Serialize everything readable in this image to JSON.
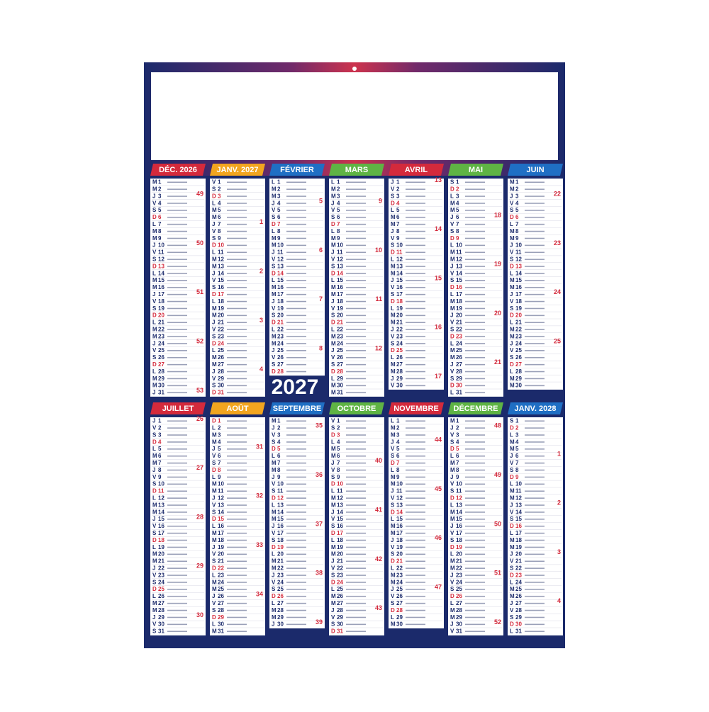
{
  "year": "2027",
  "months": [
    {
      "name": "DÉC. 2026",
      "color": "#d42a3c",
      "letters": [
        "M",
        "M",
        "J",
        "V",
        "S",
        "D",
        "L",
        "M",
        "M",
        "J",
        "V",
        "S",
        "D",
        "L",
        "M",
        "M",
        "J",
        "V",
        "S",
        "D",
        "L",
        "M",
        "M",
        "J",
        "V",
        "S",
        "D",
        "L",
        "M",
        "M",
        "J"
      ],
      "numbers": [
        1,
        2,
        3,
        4,
        5,
        6,
        7,
        8,
        9,
        10,
        11,
        12,
        13,
        14,
        15,
        16,
        17,
        18,
        19,
        20,
        21,
        22,
        23,
        24,
        25,
        26,
        27,
        28,
        29,
        30,
        31
      ],
      "weeks": [
        49,
        50,
        51,
        52,
        53
      ]
    },
    {
      "name": "JANV. 2027",
      "color": "#f2a51f",
      "letters": [
        "V",
        "S",
        "D",
        "L",
        "M",
        "M",
        "J",
        "V",
        "S",
        "D",
        "L",
        "M",
        "M",
        "J",
        "V",
        "S",
        "D",
        "L",
        "M",
        "M",
        "J",
        "V",
        "S",
        "D",
        "L",
        "M",
        "M",
        "J",
        "V",
        "S",
        "D"
      ],
      "numbers": [
        1,
        2,
        3,
        4,
        5,
        6,
        7,
        8,
        9,
        10,
        11,
        12,
        13,
        14,
        15,
        16,
        17,
        18,
        19,
        20,
        21,
        22,
        23,
        24,
        25,
        26,
        27,
        28,
        29,
        30,
        31
      ],
      "weeks": [
        1,
        2,
        3,
        4
      ]
    },
    {
      "name": "FÉVRIER",
      "color": "#1f6fc4",
      "letters": [
        "L",
        "M",
        "M",
        "J",
        "V",
        "S",
        "D",
        "L",
        "M",
        "M",
        "J",
        "V",
        "S",
        "D",
        "L",
        "M",
        "M",
        "J",
        "V",
        "S",
        "D",
        "L",
        "M",
        "M",
        "J",
        "V",
        "S",
        "D"
      ],
      "numbers": [
        1,
        2,
        3,
        4,
        5,
        6,
        7,
        8,
        9,
        10,
        11,
        12,
        13,
        14,
        15,
        16,
        17,
        18,
        19,
        20,
        21,
        22,
        23,
        24,
        25,
        26,
        27,
        28
      ],
      "weeks": [
        5,
        6,
        7,
        8
      ]
    },
    {
      "name": "MARS",
      "color": "#5fb444",
      "letters": [
        "L",
        "M",
        "M",
        "J",
        "V",
        "S",
        "D",
        "L",
        "M",
        "M",
        "J",
        "V",
        "S",
        "D",
        "L",
        "M",
        "M",
        "J",
        "V",
        "S",
        "D",
        "L",
        "M",
        "M",
        "J",
        "V",
        "S",
        "D",
        "L",
        "M",
        "M"
      ],
      "numbers": [
        1,
        2,
        3,
        4,
        5,
        6,
        7,
        8,
        9,
        10,
        11,
        12,
        13,
        14,
        15,
        16,
        17,
        18,
        19,
        20,
        21,
        22,
        23,
        24,
        25,
        26,
        27,
        28,
        29,
        30,
        31
      ],
      "weeks": [
        9,
        10,
        11,
        12
      ]
    },
    {
      "name": "AVRIL",
      "color": "#d42a3c",
      "letters": [
        "J",
        "V",
        "S",
        "D",
        "L",
        "M",
        "M",
        "J",
        "V",
        "S",
        "D",
        "L",
        "M",
        "M",
        "J",
        "V",
        "S",
        "D",
        "L",
        "M",
        "M",
        "J",
        "V",
        "S",
        "D",
        "L",
        "M",
        "M",
        "J",
        "V"
      ],
      "numbers": [
        1,
        2,
        3,
        4,
        5,
        6,
        7,
        8,
        9,
        10,
        11,
        12,
        13,
        14,
        15,
        16,
        17,
        18,
        19,
        20,
        21,
        22,
        23,
        24,
        25,
        26,
        27,
        28,
        29,
        30
      ],
      "weeks": [
        13,
        14,
        15,
        16,
        17
      ]
    },
    {
      "name": "MAI",
      "color": "#5fb444",
      "letters": [
        "S",
        "D",
        "L",
        "M",
        "M",
        "J",
        "V",
        "S",
        "D",
        "L",
        "M",
        "M",
        "J",
        "V",
        "S",
        "D",
        "L",
        "M",
        "M",
        "J",
        "V",
        "S",
        "D",
        "L",
        "M",
        "M",
        "J",
        "V",
        "S",
        "D",
        "L"
      ],
      "numbers": [
        1,
        2,
        3,
        4,
        5,
        6,
        7,
        8,
        9,
        10,
        11,
        12,
        13,
        14,
        15,
        16,
        17,
        18,
        19,
        20,
        21,
        22,
        23,
        24,
        25,
        26,
        27,
        28,
        29,
        30,
        31
      ],
      "weeks": [
        18,
        19,
        20,
        21
      ]
    },
    {
      "name": "JUIN",
      "color": "#1f6fc4",
      "letters": [
        "M",
        "M",
        "J",
        "V",
        "S",
        "D",
        "L",
        "M",
        "M",
        "J",
        "V",
        "S",
        "D",
        "L",
        "M",
        "M",
        "J",
        "V",
        "S",
        "D",
        "L",
        "M",
        "M",
        "J",
        "V",
        "S",
        "D",
        "L",
        "M",
        "M"
      ],
      "numbers": [
        1,
        2,
        3,
        4,
        5,
        6,
        7,
        8,
        9,
        10,
        11,
        12,
        13,
        14,
        15,
        16,
        17,
        18,
        19,
        20,
        21,
        22,
        23,
        24,
        25,
        26,
        27,
        28,
        29,
        30
      ],
      "weeks": [
        22,
        23,
        24,
        25
      ]
    },
    {
      "name": "JUILLET",
      "color": "#d42a3c",
      "letters": [
        "J",
        "V",
        "S",
        "D",
        "L",
        "M",
        "M",
        "J",
        "V",
        "S",
        "D",
        "L",
        "M",
        "M",
        "J",
        "V",
        "S",
        "D",
        "L",
        "M",
        "M",
        "J",
        "V",
        "S",
        "D",
        "L",
        "M",
        "M",
        "J",
        "V",
        "S"
      ],
      "numbers": [
        1,
        2,
        3,
        4,
        5,
        6,
        7,
        8,
        9,
        10,
        11,
        12,
        13,
        14,
        15,
        16,
        17,
        18,
        19,
        20,
        21,
        22,
        23,
        24,
        25,
        26,
        27,
        28,
        29,
        30,
        31
      ],
      "weeks": [
        26,
        27,
        28,
        29,
        30
      ]
    },
    {
      "name": "AOÛT",
      "color": "#f2a51f",
      "letters": [
        "D",
        "L",
        "M",
        "M",
        "J",
        "V",
        "S",
        "D",
        "L",
        "M",
        "M",
        "J",
        "V",
        "S",
        "D",
        "L",
        "M",
        "M",
        "J",
        "V",
        "S",
        "D",
        "L",
        "M",
        "M",
        "J",
        "V",
        "S",
        "D",
        "L",
        "M"
      ],
      "numbers": [
        1,
        2,
        3,
        4,
        5,
        6,
        7,
        8,
        9,
        10,
        11,
        12,
        13,
        14,
        15,
        16,
        17,
        18,
        19,
        20,
        21,
        22,
        23,
        24,
        25,
        26,
        27,
        28,
        29,
        30,
        31
      ],
      "weeks": [
        31,
        32,
        33,
        34
      ]
    },
    {
      "name": "SEPTEMBRE",
      "color": "#1f6fc4",
      "letters": [
        "M",
        "J",
        "V",
        "S",
        "D",
        "L",
        "M",
        "M",
        "J",
        "V",
        "S",
        "D",
        "L",
        "M",
        "M",
        "J",
        "V",
        "S",
        "D",
        "L",
        "M",
        "M",
        "J",
        "V",
        "S",
        "D",
        "L",
        "M",
        "M",
        "J"
      ],
      "numbers": [
        1,
        2,
        3,
        4,
        5,
        6,
        7,
        8,
        9,
        10,
        11,
        12,
        13,
        14,
        15,
        16,
        17,
        18,
        19,
        20,
        21,
        22,
        23,
        24,
        25,
        26,
        27,
        28,
        29,
        30
      ],
      "weeks": [
        35,
        36,
        37,
        38,
        39
      ]
    },
    {
      "name": "OCTOBRE",
      "color": "#5fb444",
      "letters": [
        "V",
        "S",
        "D",
        "L",
        "M",
        "M",
        "J",
        "V",
        "S",
        "D",
        "L",
        "M",
        "M",
        "J",
        "V",
        "S",
        "D",
        "L",
        "M",
        "M",
        "J",
        "V",
        "S",
        "D",
        "L",
        "M",
        "M",
        "J",
        "V",
        "S",
        "D"
      ],
      "numbers": [
        1,
        2,
        3,
        4,
        5,
        6,
        7,
        8,
        9,
        10,
        11,
        12,
        13,
        14,
        15,
        16,
        17,
        18,
        19,
        20,
        21,
        22,
        23,
        24,
        25,
        26,
        27,
        28,
        29,
        30,
        31
      ],
      "weeks": [
        40,
        41,
        42,
        43
      ]
    },
    {
      "name": "NOVEMBRE",
      "color": "#d42a3c",
      "letters": [
        "L",
        "M",
        "M",
        "J",
        "V",
        "S",
        "D",
        "L",
        "M",
        "M",
        "J",
        "V",
        "S",
        "D",
        "L",
        "M",
        "M",
        "J",
        "V",
        "S",
        "D",
        "L",
        "M",
        "M",
        "J",
        "V",
        "S",
        "D",
        "L",
        "M"
      ],
      "numbers": [
        1,
        2,
        3,
        4,
        5,
        6,
        7,
        8,
        9,
        10,
        11,
        12,
        13,
        14,
        15,
        16,
        17,
        18,
        19,
        20,
        21,
        22,
        23,
        24,
        25,
        26,
        27,
        28,
        29,
        30
      ],
      "weeks": [
        44,
        45,
        46,
        47
      ]
    },
    {
      "name": "DÉCEMBRE",
      "color": "#5fb444",
      "letters": [
        "M",
        "J",
        "V",
        "S",
        "D",
        "L",
        "M",
        "M",
        "J",
        "V",
        "S",
        "D",
        "L",
        "M",
        "M",
        "J",
        "V",
        "S",
        "D",
        "L",
        "M",
        "M",
        "J",
        "V",
        "S",
        "D",
        "L",
        "M",
        "M",
        "J",
        "V"
      ],
      "numbers": [
        1,
        2,
        3,
        4,
        5,
        6,
        7,
        8,
        9,
        10,
        11,
        12,
        13,
        14,
        15,
        16,
        17,
        18,
        19,
        20,
        21,
        22,
        23,
        24,
        25,
        26,
        27,
        28,
        29,
        30,
        31
      ],
      "weeks": [
        48,
        49,
        50,
        51,
        52
      ]
    },
    {
      "name": "JANV. 2028",
      "color": "#1f6fc4",
      "letters": [
        "S",
        "D",
        "L",
        "M",
        "M",
        "J",
        "V",
        "S",
        "D",
        "L",
        "M",
        "M",
        "J",
        "V",
        "S",
        "D",
        "L",
        "M",
        "M",
        "J",
        "V",
        "S",
        "D",
        "L",
        "M",
        "M",
        "J",
        "V",
        "S",
        "D",
        "L"
      ],
      "numbers": [
        1,
        2,
        3,
        4,
        5,
        6,
        7,
        8,
        9,
        10,
        11,
        12,
        13,
        14,
        15,
        16,
        17,
        18,
        19,
        20,
        21,
        22,
        23,
        24,
        25,
        26,
        27,
        28,
        29,
        30,
        31
      ],
      "weeks": [
        1,
        2,
        3,
        4
      ]
    }
  ]
}
